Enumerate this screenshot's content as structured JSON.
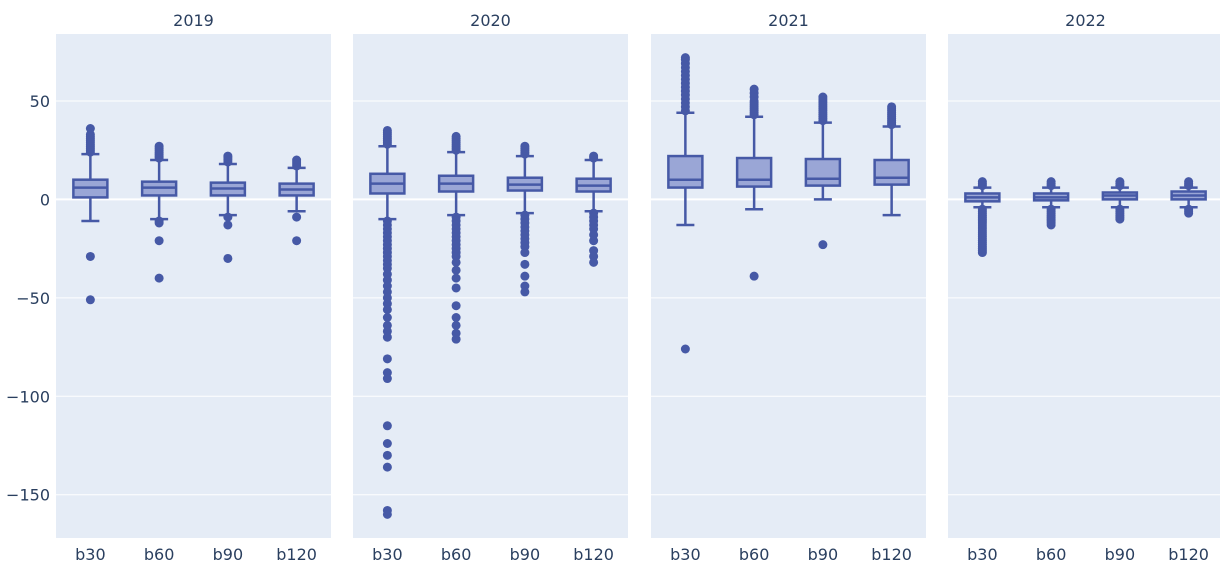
{
  "chart_data": {
    "type": "box",
    "ylim": [
      -172,
      84
    ],
    "y_ticks": [
      50,
      0,
      -50,
      -100,
      -150
    ],
    "y_tick_labels": [
      "50",
      "0",
      "−50",
      "−100",
      "−150"
    ],
    "grid": true,
    "colors": {
      "box_stroke": "#4659a6",
      "box_fill": "#9aa6d6",
      "point": "#4659a6",
      "panel_bg": "#e5ecf6",
      "grid": "#ffffff",
      "text": "#2a3f5f"
    },
    "panels": [
      {
        "title": "2019",
        "categories": [
          "b30",
          "b60",
          "b90",
          "b120"
        ],
        "boxes": [
          {
            "name": "b30",
            "q1": 1,
            "median": 6,
            "q3": 10,
            "lower_fence": -11,
            "upper_fence": 23,
            "outliers": [
              24,
              25,
              26,
              27,
              28,
              29,
              30,
              31,
              32,
              33,
              36,
              -29,
              -51
            ]
          },
          {
            "name": "b60",
            "q1": 2,
            "median": 6,
            "q3": 9,
            "lower_fence": -10,
            "upper_fence": 20,
            "outliers": [
              21,
              22,
              23,
              24,
              25,
              26,
              27,
              -11,
              -12,
              -21,
              -40
            ]
          },
          {
            "name": "b90",
            "q1": 2,
            "median": 5.5,
            "q3": 8.5,
            "lower_fence": -8,
            "upper_fence": 18,
            "outliers": [
              19,
              20,
              21,
              22,
              -9,
              -13,
              -30
            ]
          },
          {
            "name": "b120",
            "q1": 2,
            "median": 5,
            "q3": 8,
            "lower_fence": -6,
            "upper_fence": 16,
            "outliers": [
              17,
              18,
              19,
              20,
              -9,
              -21
            ]
          }
        ]
      },
      {
        "title": "2020",
        "categories": [
          "b30",
          "b60",
          "b90",
          "b120"
        ],
        "boxes": [
          {
            "name": "b30",
            "q1": 3,
            "median": 8,
            "q3": 13,
            "lower_fence": -10,
            "upper_fence": 27,
            "outliers": [
              28,
              29,
              30,
              31,
              32,
              33,
              34,
              35,
              -11,
              -13,
              -15,
              -17,
              -19,
              -21,
              -23,
              -25,
              -27,
              -29,
              -31,
              -33,
              -35,
              -38,
              -41,
              -44,
              -47,
              -50,
              -53,
              -56,
              -60,
              -64,
              -67,
              -70,
              -81,
              -88,
              -91,
              -115,
              -124,
              -130,
              -136,
              -158,
              -160
            ]
          },
          {
            "name": "b60",
            "q1": 4,
            "median": 8,
            "q3": 12,
            "lower_fence": -8,
            "upper_fence": 24,
            "outliers": [
              25,
              26,
              27,
              28,
              29,
              30,
              31,
              32,
              -9,
              -11,
              -13,
              -15,
              -17,
              -19,
              -21,
              -23,
              -25,
              -27,
              -29,
              -32,
              -36,
              -40,
              -45,
              -54,
              -60,
              -64,
              -68,
              -71
            ]
          },
          {
            "name": "b90",
            "q1": 4.5,
            "median": 7.5,
            "q3": 11,
            "lower_fence": -7,
            "upper_fence": 22,
            "outliers": [
              23,
              24,
              25,
              26,
              27,
              -8,
              -10,
              -12,
              -14,
              -16,
              -18,
              -20,
              -22,
              -24,
              -27,
              -33,
              -39,
              -44,
              -47
            ]
          },
          {
            "name": "b120",
            "q1": 4,
            "median": 7,
            "q3": 10.5,
            "lower_fence": -6,
            "upper_fence": 20,
            "outliers": [
              21,
              22,
              -7,
              -9,
              -11,
              -13,
              -15,
              -18,
              -21,
              -26,
              -29,
              -32
            ]
          }
        ]
      },
      {
        "title": "2021",
        "categories": [
          "b30",
          "b60",
          "b90",
          "b120"
        ],
        "boxes": [
          {
            "name": "b30",
            "q1": 6,
            "median": 10,
            "q3": 22,
            "lower_fence": -13,
            "upper_fence": 44,
            "outliers": [
              45,
              47,
              49,
              51,
              53,
              55,
              57,
              59,
              61,
              63,
              65,
              67,
              69,
              71,
              72,
              -76
            ]
          },
          {
            "name": "b60",
            "q1": 6.5,
            "median": 10,
            "q3": 21,
            "lower_fence": -5,
            "upper_fence": 42,
            "outliers": [
              43,
              44,
              45,
              46,
              47,
              48,
              49,
              50,
              52,
              54,
              56,
              -39
            ]
          },
          {
            "name": "b90",
            "q1": 7,
            "median": 10.5,
            "q3": 20.5,
            "lower_fence": 0,
            "upper_fence": 39,
            "outliers": [
              40,
              41,
              42,
              43,
              44,
              45,
              46,
              47,
              48,
              49,
              50,
              51,
              52,
              -23
            ]
          },
          {
            "name": "b120",
            "q1": 7.5,
            "median": 11,
            "q3": 20,
            "lower_fence": -8,
            "upper_fence": 37,
            "outliers": [
              38,
              39,
              40,
              41,
              42,
              43,
              44,
              45,
              46,
              47
            ]
          }
        ]
      },
      {
        "title": "2022",
        "categories": [
          "b30",
          "b60",
          "b90",
          "b120"
        ],
        "boxes": [
          {
            "name": "b30",
            "q1": -1,
            "median": 1,
            "q3": 3,
            "lower_fence": -4,
            "upper_fence": 6,
            "outliers": [
              7,
              8,
              9,
              -5,
              -6,
              -7,
              -8,
              -9,
              -10,
              -11,
              -12,
              -13,
              -14,
              -15,
              -16,
              -17,
              -18,
              -19,
              -20,
              -21,
              -22,
              -23,
              -24,
              -25,
              -26,
              -27
            ]
          },
          {
            "name": "b60",
            "q1": -0.5,
            "median": 1,
            "q3": 3,
            "lower_fence": -4,
            "upper_fence": 6,
            "outliers": [
              7,
              8,
              9,
              -5,
              -6,
              -7,
              -8,
              -9,
              -10,
              -11,
              -12,
              -13
            ]
          },
          {
            "name": "b90",
            "q1": 0,
            "median": 2,
            "q3": 3.5,
            "lower_fence": -4,
            "upper_fence": 6,
            "outliers": [
              7,
              8,
              9,
              -5,
              -6,
              -7,
              -8,
              -9,
              -10
            ]
          },
          {
            "name": "b120",
            "q1": 0,
            "median": 2,
            "q3": 4,
            "lower_fence": -4,
            "upper_fence": 6,
            "outliers": [
              7,
              8,
              9,
              -5,
              -6,
              -7
            ]
          }
        ]
      }
    ]
  }
}
